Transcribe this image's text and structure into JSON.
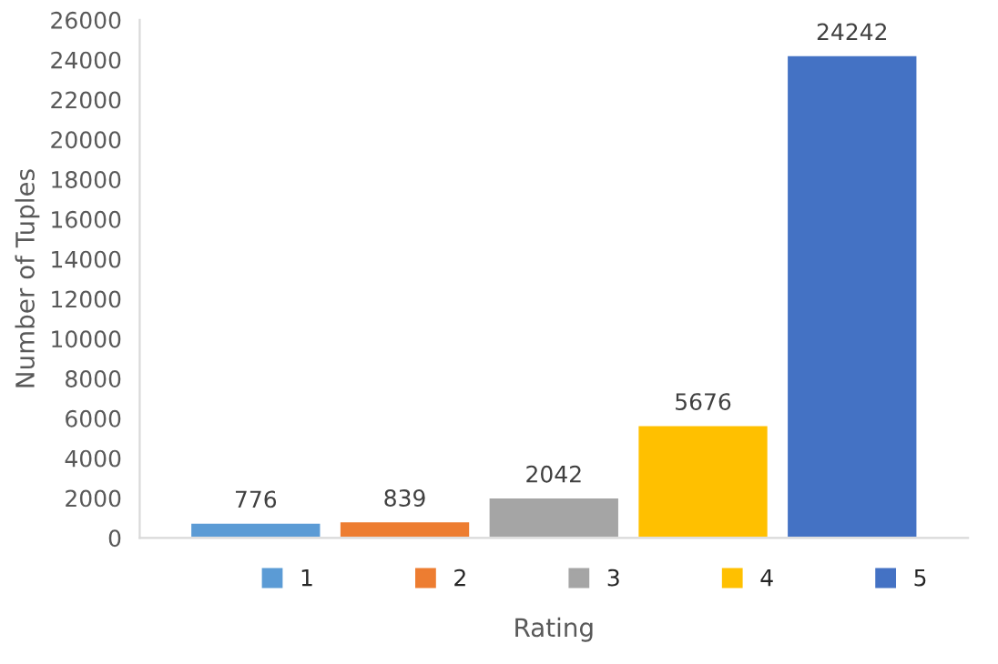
{
  "chart_data": {
    "type": "bar",
    "xlabel": "Rating",
    "ylabel": "Number of Tuples",
    "categories": [
      null
    ],
    "series": [
      {
        "name": "1",
        "color": "#5b9bd5",
        "values": [
          776
        ]
      },
      {
        "name": "2",
        "color": "#ed7d31",
        "values": [
          839
        ]
      },
      {
        "name": "3",
        "color": "#a5a5a5",
        "values": [
          2042
        ]
      },
      {
        "name": "4",
        "color": "#ffc000",
        "values": [
          5676
        ]
      },
      {
        "name": "5",
        "color": "#4472c4",
        "values": [
          24242
        ]
      }
    ],
    "ylim": [
      0,
      26000
    ],
    "yticks": [
      0,
      2000,
      4000,
      6000,
      8000,
      10000,
      12000,
      14000,
      16000,
      18000,
      20000,
      22000,
      24000,
      26000
    ],
    "data_labels": true,
    "legend": "bottom",
    "grid": false
  }
}
